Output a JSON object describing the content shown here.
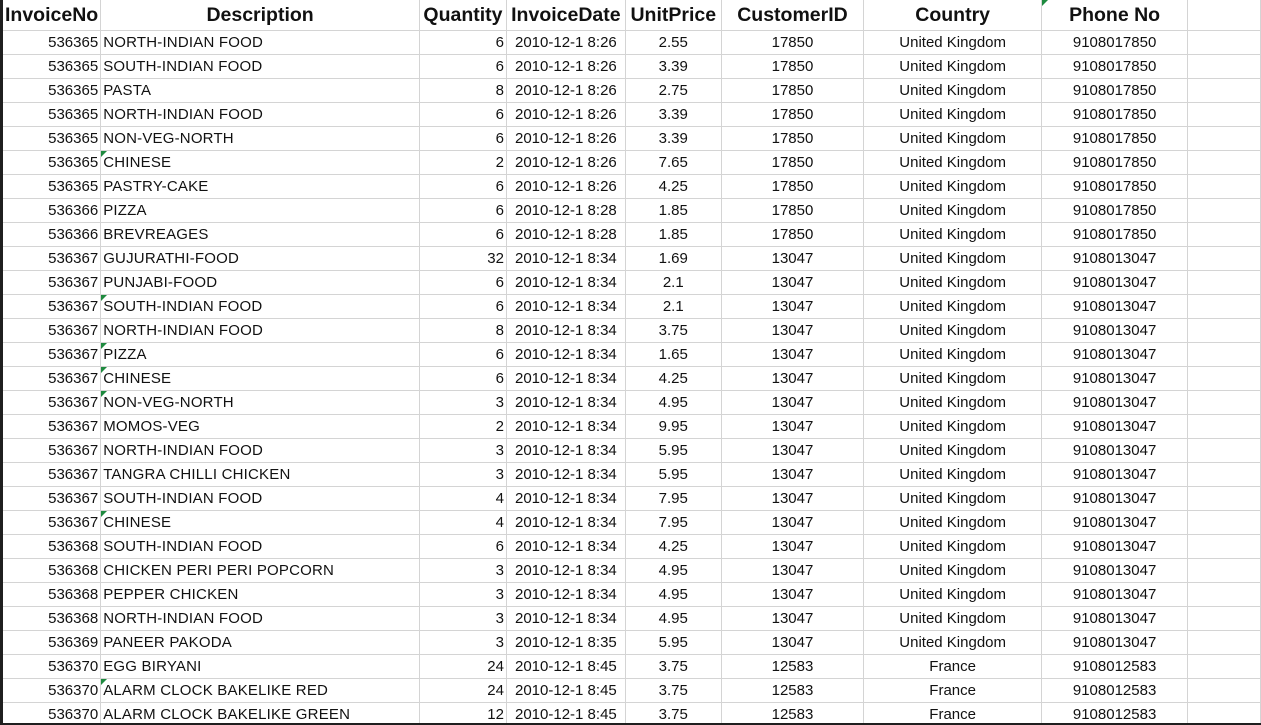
{
  "sheet": {
    "headers": {
      "invoice_no": "InvoiceNo",
      "description": "Description",
      "quantity": "Quantity",
      "invoice_date": "InvoiceDate",
      "unit_price": "UnitPrice",
      "customer_id": "CustomerID",
      "country": "Country",
      "phone_no": "Phone No"
    },
    "rows": [
      {
        "inv": "536365",
        "desc": "NORTH-INDIAN FOOD",
        "qty": "6",
        "date": "2010-12-1 8:26",
        "price": "2.55",
        "cust": "17850",
        "country": "United Kingdom",
        "phone": "9108017850",
        "flag": false
      },
      {
        "inv": "536365",
        "desc": "SOUTH-INDIAN FOOD",
        "qty": "6",
        "date": "2010-12-1 8:26",
        "price": "3.39",
        "cust": "17850",
        "country": "United Kingdom",
        "phone": "9108017850",
        "flag": false
      },
      {
        "inv": "536365",
        "desc": "PASTA",
        "qty": "8",
        "date": "2010-12-1 8:26",
        "price": "2.75",
        "cust": "17850",
        "country": "United Kingdom",
        "phone": "9108017850",
        "flag": false
      },
      {
        "inv": "536365",
        "desc": "NORTH-INDIAN FOOD",
        "qty": "6",
        "date": "2010-12-1 8:26",
        "price": "3.39",
        "cust": "17850",
        "country": "United Kingdom",
        "phone": "9108017850",
        "flag": false
      },
      {
        "inv": "536365",
        "desc": "NON-VEG-NORTH",
        "qty": "6",
        "date": "2010-12-1 8:26",
        "price": "3.39",
        "cust": "17850",
        "country": "United Kingdom",
        "phone": "9108017850",
        "flag": false
      },
      {
        "inv": "536365",
        "desc": "CHINESE",
        "qty": "2",
        "date": "2010-12-1 8:26",
        "price": "7.65",
        "cust": "17850",
        "country": "United Kingdom",
        "phone": "9108017850",
        "flag": true
      },
      {
        "inv": "536365",
        "desc": "PASTRY-CAKE",
        "qty": "6",
        "date": "2010-12-1 8:26",
        "price": "4.25",
        "cust": "17850",
        "country": "United Kingdom",
        "phone": "9108017850",
        "flag": false
      },
      {
        "inv": "536366",
        "desc": "PIZZA",
        "qty": "6",
        "date": "2010-12-1 8:28",
        "price": "1.85",
        "cust": "17850",
        "country": "United Kingdom",
        "phone": "9108017850",
        "flag": false
      },
      {
        "inv": "536366",
        "desc": "BREVREAGES",
        "qty": "6",
        "date": "2010-12-1 8:28",
        "price": "1.85",
        "cust": "17850",
        "country": "United Kingdom",
        "phone": "9108017850",
        "flag": false
      },
      {
        "inv": "536367",
        "desc": "GUJURATHI-FOOD",
        "qty": "32",
        "date": "2010-12-1 8:34",
        "price": "1.69",
        "cust": "13047",
        "country": "United Kingdom",
        "phone": "9108013047",
        "flag": false
      },
      {
        "inv": "536367",
        "desc": "PUNJABI-FOOD",
        "qty": "6",
        "date": "2010-12-1 8:34",
        "price": "2.1",
        "cust": "13047",
        "country": "United Kingdom",
        "phone": "9108013047",
        "flag": false
      },
      {
        "inv": "536367",
        "desc": "SOUTH-INDIAN FOOD",
        "qty": "6",
        "date": "2010-12-1 8:34",
        "price": "2.1",
        "cust": "13047",
        "country": "United Kingdom",
        "phone": "9108013047",
        "flag": true
      },
      {
        "inv": "536367",
        "desc": "NORTH-INDIAN FOOD",
        "qty": "8",
        "date": "2010-12-1 8:34",
        "price": "3.75",
        "cust": "13047",
        "country": "United Kingdom",
        "phone": "9108013047",
        "flag": false
      },
      {
        "inv": "536367",
        "desc": "PIZZA",
        "qty": "6",
        "date": "2010-12-1 8:34",
        "price": "1.65",
        "cust": "13047",
        "country": "United Kingdom",
        "phone": "9108013047",
        "flag": true
      },
      {
        "inv": "536367",
        "desc": "CHINESE",
        "qty": "6",
        "date": "2010-12-1 8:34",
        "price": "4.25",
        "cust": "13047",
        "country": "United Kingdom",
        "phone": "9108013047",
        "flag": true
      },
      {
        "inv": "536367",
        "desc": "NON-VEG-NORTH",
        "qty": "3",
        "date": "2010-12-1 8:34",
        "price": "4.95",
        "cust": "13047",
        "country": "United Kingdom",
        "phone": "9108013047",
        "flag": true
      },
      {
        "inv": "536367",
        "desc": "MOMOS-VEG",
        "qty": "2",
        "date": "2010-12-1 8:34",
        "price": "9.95",
        "cust": "13047",
        "country": "United Kingdom",
        "phone": "9108013047",
        "flag": false
      },
      {
        "inv": "536367",
        "desc": "NORTH-INDIAN FOOD",
        "qty": "3",
        "date": "2010-12-1 8:34",
        "price": "5.95",
        "cust": "13047",
        "country": "United Kingdom",
        "phone": "9108013047",
        "flag": false
      },
      {
        "inv": "536367",
        "desc": "TANGRA CHILLI CHICKEN",
        "qty": "3",
        "date": "2010-12-1 8:34",
        "price": "5.95",
        "cust": "13047",
        "country": "United Kingdom",
        "phone": "9108013047",
        "flag": false
      },
      {
        "inv": "536367",
        "desc": "SOUTH-INDIAN FOOD",
        "qty": "4",
        "date": "2010-12-1 8:34",
        "price": "7.95",
        "cust": "13047",
        "country": "United Kingdom",
        "phone": "9108013047",
        "flag": false
      },
      {
        "inv": "536367",
        "desc": "CHINESE",
        "qty": "4",
        "date": "2010-12-1 8:34",
        "price": "7.95",
        "cust": "13047",
        "country": "United Kingdom",
        "phone": "9108013047",
        "flag": true
      },
      {
        "inv": "536368",
        "desc": "SOUTH-INDIAN FOOD",
        "qty": "6",
        "date": "2010-12-1 8:34",
        "price": "4.25",
        "cust": "13047",
        "country": "United Kingdom",
        "phone": "9108013047",
        "flag": false
      },
      {
        "inv": "536368",
        "desc": "CHICKEN PERI PERI POPCORN",
        "qty": "3",
        "date": "2010-12-1 8:34",
        "price": "4.95",
        "cust": "13047",
        "country": "United Kingdom",
        "phone": "9108013047",
        "flag": false
      },
      {
        "inv": "536368",
        "desc": "PEPPER CHICKEN",
        "qty": "3",
        "date": "2010-12-1 8:34",
        "price": "4.95",
        "cust": "13047",
        "country": "United Kingdom",
        "phone": "9108013047",
        "flag": false
      },
      {
        "inv": "536368",
        "desc": "NORTH-INDIAN FOOD",
        "qty": "3",
        "date": "2010-12-1 8:34",
        "price": "4.95",
        "cust": "13047",
        "country": "United Kingdom",
        "phone": "9108013047",
        "flag": false
      },
      {
        "inv": "536369",
        "desc": "PANEER PAKODA",
        "qty": "3",
        "date": "2010-12-1 8:35",
        "price": "5.95",
        "cust": "13047",
        "country": "United Kingdom",
        "phone": "9108013047",
        "flag": false
      },
      {
        "inv": "536370",
        "desc": "EGG BIRYANI",
        "qty": "24",
        "date": "2010-12-1 8:45",
        "price": "3.75",
        "cust": "12583",
        "country": "France",
        "phone": "9108012583",
        "flag": false
      },
      {
        "inv": "536370",
        "desc": "ALARM CLOCK BAKELIKE RED",
        "qty": "24",
        "date": "2010-12-1 8:45",
        "price": "3.75",
        "cust": "12583",
        "country": "France",
        "phone": "9108012583",
        "flag": true
      },
      {
        "inv": "536370",
        "desc": "ALARM CLOCK BAKELIKE GREEN",
        "qty": "12",
        "date": "2010-12-1 8:45",
        "price": "3.75",
        "cust": "12583",
        "country": "France",
        "phone": "9108012583",
        "flag": false
      }
    ],
    "colors": {
      "gridline": "#d4d4d4",
      "comment_indicator": "#1e8a3f",
      "border_dark": "#1f1f1f"
    }
  }
}
